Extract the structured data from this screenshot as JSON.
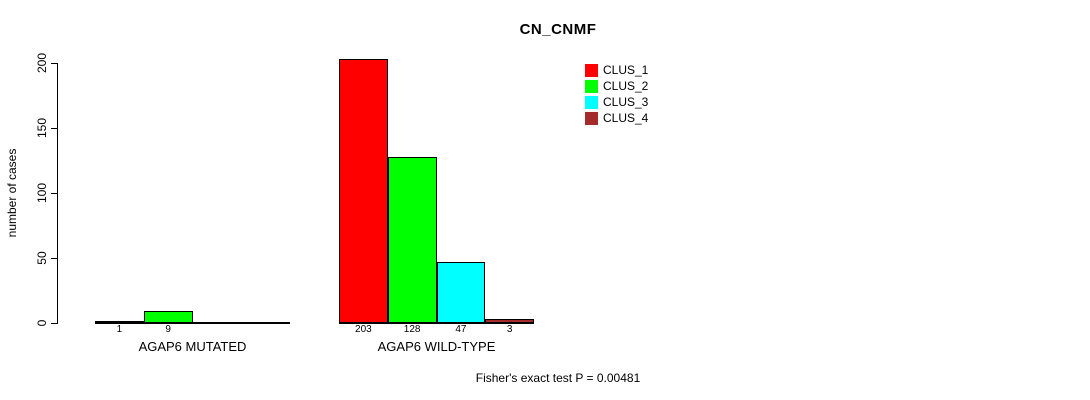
{
  "chart_data": {
    "type": "bar",
    "title": "CN_CNMF",
    "ylabel": "number of cases",
    "xlabel": "",
    "ylim": [
      0,
      200
    ],
    "yticks": [
      0,
      50,
      100,
      150,
      200
    ],
    "grid": false,
    "categories": [
      "AGAP6 MUTATED",
      "AGAP6 WILD-TYPE"
    ],
    "series_names": [
      "CLUS_1",
      "CLUS_2",
      "CLUS_3",
      "CLUS_4"
    ],
    "series_colors": [
      "#FF0000",
      "#00FF00",
      "#00FFFF",
      "#A52A2A"
    ],
    "groups": [
      {
        "label": "AGAP6 MUTATED",
        "values": [
          1,
          9,
          0,
          0
        ],
        "value_labels": [
          "1",
          "9",
          "",
          ""
        ]
      },
      {
        "label": "AGAP6 WILD-TYPE",
        "values": [
          203,
          128,
          47,
          3
        ],
        "value_labels": [
          "203",
          "128",
          "47",
          "3"
        ]
      }
    ],
    "legend": [
      {
        "label": "CLUS_1",
        "color": "#FF0000"
      },
      {
        "label": "CLUS_2",
        "color": "#00FF00"
      },
      {
        "label": "CLUS_3",
        "color": "#00FFFF"
      },
      {
        "label": "CLUS_4",
        "color": "#A52A2A"
      }
    ],
    "legend_position": "top-right",
    "footer": "Fisher's exact test P = 0.00481"
  }
}
